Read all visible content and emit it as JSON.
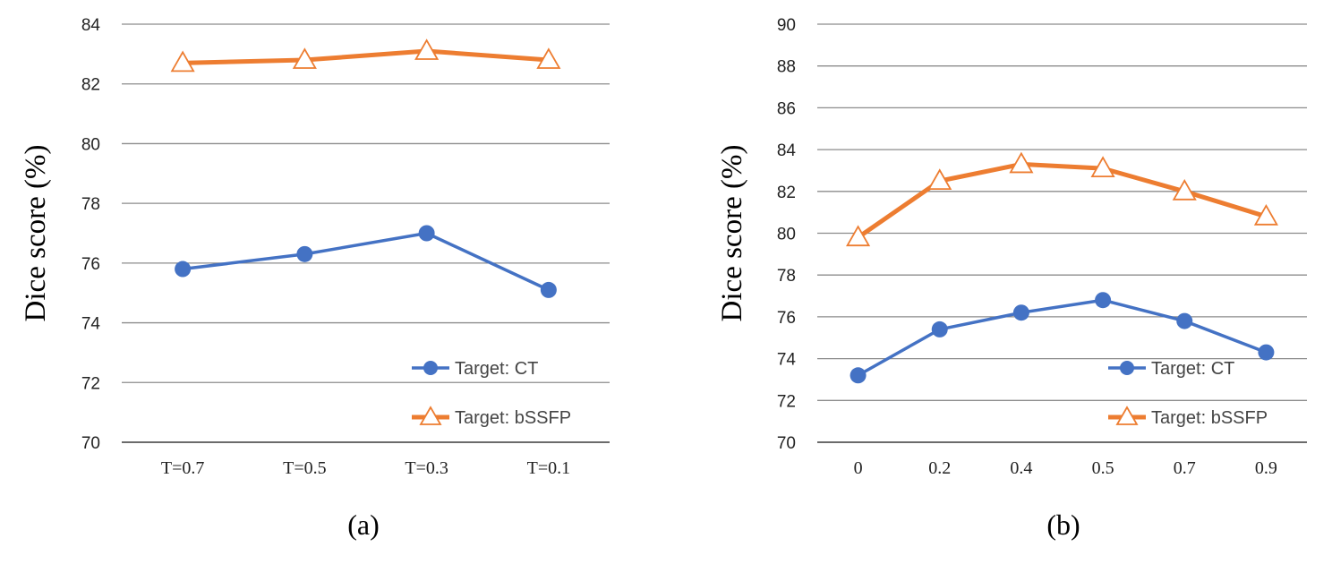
{
  "chart_data": [
    {
      "type": "line",
      "caption": "(a)",
      "ylabel": "Dice score (%)",
      "xlabel": "",
      "categories": [
        "T=0.7",
        "T=0.5",
        "T=0.3",
        "T=0.1"
      ],
      "ylim": [
        70,
        84
      ],
      "yticks": [
        70,
        72,
        74,
        76,
        78,
        80,
        82,
        84
      ],
      "grid": true,
      "legend_position": "bottom-right",
      "series": [
        {
          "name": "Target: CT",
          "values": [
            75.8,
            76.3,
            77.0,
            75.1
          ],
          "color": "#4472C4",
          "marker": "circle"
        },
        {
          "name": "Target: bSSFP",
          "values": [
            82.7,
            82.8,
            83.1,
            82.8
          ],
          "color": "#ED7D31",
          "marker": "triangle-open"
        }
      ]
    },
    {
      "type": "line",
      "caption": "(b)",
      "ylabel": "Dice score (%)",
      "xlabel": "",
      "categories": [
        "0",
        "0.2",
        "0.4",
        "0.5",
        "0.7",
        "0.9"
      ],
      "ylim": [
        70,
        90
      ],
      "yticks": [
        70,
        72,
        74,
        76,
        78,
        80,
        82,
        84,
        86,
        88,
        90
      ],
      "grid": true,
      "legend_position": "bottom-right",
      "series": [
        {
          "name": "Target: CT",
          "values": [
            73.2,
            75.4,
            76.2,
            76.8,
            75.8,
            74.3
          ],
          "color": "#4472C4",
          "marker": "circle"
        },
        {
          "name": "Target: bSSFP",
          "values": [
            79.8,
            82.5,
            83.3,
            83.1,
            82.0,
            80.8
          ],
          "color": "#ED7D31",
          "marker": "triangle-open"
        }
      ]
    }
  ]
}
